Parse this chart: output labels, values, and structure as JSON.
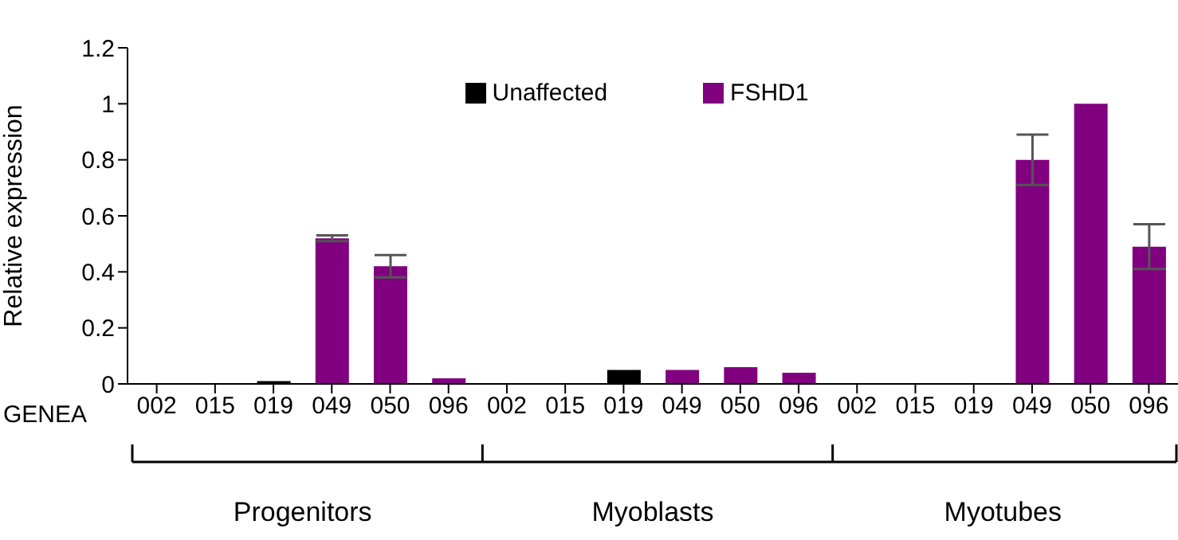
{
  "chart_data": {
    "type": "bar",
    "ylabel": "Relative expression",
    "xlabel": "GENEA",
    "categories": [
      "002",
      "015",
      "019",
      "049",
      "050",
      "096",
      "002",
      "015",
      "019",
      "049",
      "050",
      "096",
      "002",
      "015",
      "019",
      "049",
      "050",
      "096"
    ],
    "series": [
      {
        "name": "Unaffected",
        "color": "#000000",
        "values": [
          0,
          0,
          0.01,
          null,
          null,
          null,
          0,
          0,
          0.05,
          null,
          null,
          null,
          0,
          0,
          0,
          null,
          null,
          null
        ]
      },
      {
        "name": "FSHD1",
        "color": "#800080",
        "values": [
          null,
          null,
          null,
          0.52,
          0.42,
          0.02,
          null,
          null,
          null,
          0.05,
          0.06,
          0.04,
          null,
          null,
          null,
          0.8,
          1,
          0.49
        ],
        "errors": [
          null,
          null,
          null,
          0.01,
          0.04,
          null,
          null,
          null,
          null,
          null,
          null,
          null,
          null,
          null,
          null,
          0.09,
          null,
          0.08
        ]
      }
    ],
    "ylim": [
      0,
      1.2
    ],
    "yticks": [
      0,
      0.2,
      0.4,
      0.6,
      0.8,
      1,
      1.2
    ],
    "legend": "top",
    "annotations": [
      "Progenitors",
      "Myoblasts",
      "Myotubes"
    ]
  }
}
